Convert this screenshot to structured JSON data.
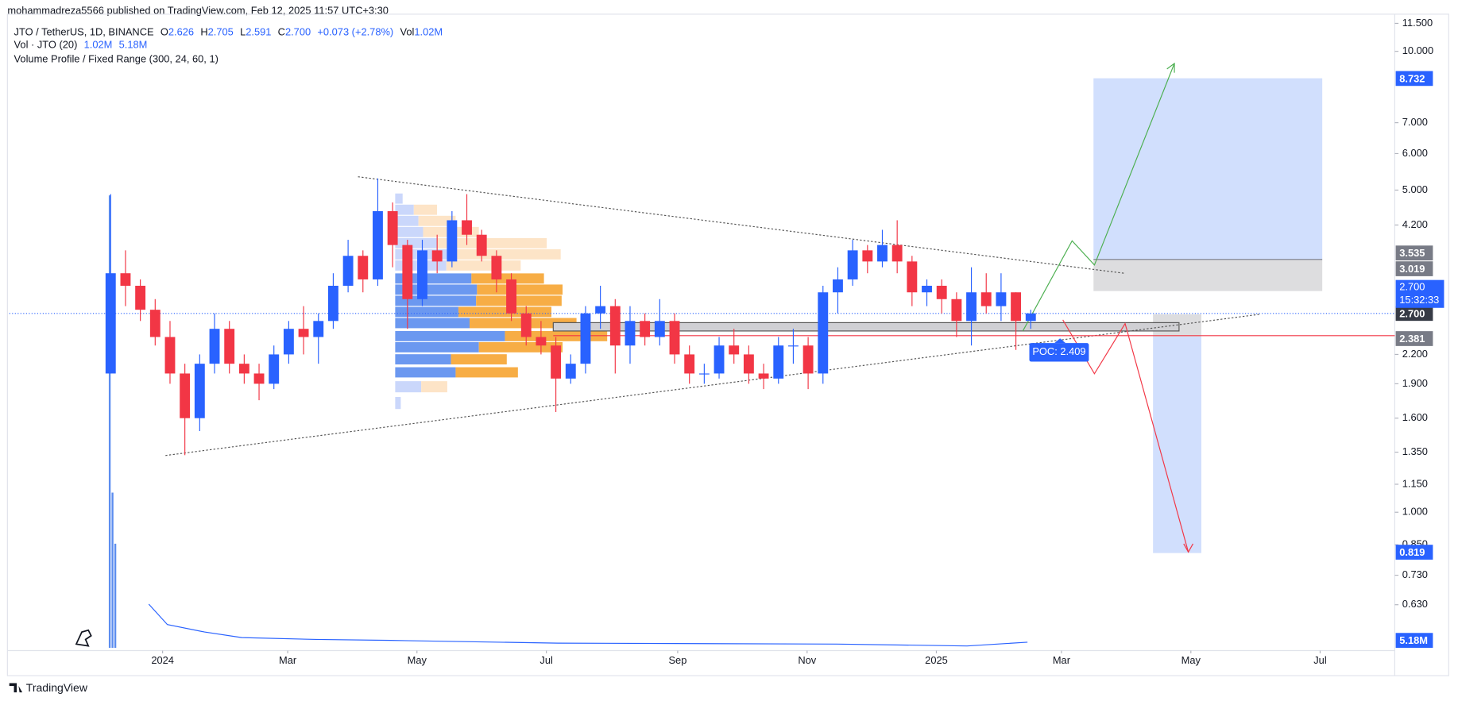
{
  "header": {
    "published": "mohammadreza5566 published on TradingView.com, Feb 12, 2025 11:57 UTC+3:30",
    "footer": "TradingView"
  },
  "legend": {
    "symbol": "JTO / TetherUS, 1D, BINANCE",
    "o_key": "O",
    "o_val": "2.626",
    "h_key": "H",
    "h_val": "2.705",
    "l_key": "L",
    "l_val": "2.591",
    "c_key": "C",
    "c_val": "2.700",
    "change": "+0.073 (+2.78%)",
    "vol_key": "Vol",
    "vol_val": "1.02M",
    "vol_study": "Vol · JTO (20)",
    "vol_study_v1": "1.02M",
    "vol_study_v2": "5.18M",
    "vp_study": "Volume Profile / Fixed Range (300, 24, 60, 1)"
  },
  "chart_data": {
    "type": "candlestick",
    "log_scale": true,
    "up_color": "#2962ff",
    "down_color": "#f23645",
    "x": [
      0,
      1,
      2,
      3,
      4,
      5,
      6,
      7,
      8,
      9,
      10,
      11,
      12,
      13,
      14,
      15,
      16,
      17,
      18,
      19,
      20,
      21,
      22,
      23,
      24,
      25,
      26,
      27,
      28,
      29,
      30,
      31,
      32,
      33,
      34,
      35,
      36,
      37,
      38,
      39,
      40,
      41,
      42,
      43,
      44,
      45,
      46,
      47,
      48,
      49,
      50,
      51,
      52,
      53,
      54,
      55,
      56,
      57,
      58,
      59,
      60,
      61,
      62
    ],
    "open": [
      2.0,
      3.3,
      3.1,
      2.75,
      2.4,
      2.0,
      1.6,
      2.1,
      2.5,
      2.1,
      2.0,
      1.9,
      2.2,
      2.5,
      2.4,
      2.6,
      3.1,
      3.6,
      3.2,
      4.5,
      3.8,
      2.9,
      3.7,
      3.5,
      4.3,
      4.0,
      3.6,
      3.2,
      2.7,
      2.4,
      2.3,
      1.95,
      2.1,
      2.7,
      2.8,
      2.3,
      2.6,
      2.4,
      2.6,
      2.2,
      2.0,
      2.0,
      2.3,
      2.2,
      2.0,
      1.95,
      2.3,
      2.3,
      2.0,
      3.0,
      3.2,
      3.7,
      3.5,
      3.8,
      3.5,
      3.0,
      3.1,
      2.9,
      2.6,
      3.0,
      2.8,
      3.0,
      2.6
    ],
    "high": [
      4.9,
      3.7,
      3.2,
      2.9,
      2.6,
      2.1,
      2.2,
      2.7,
      2.6,
      2.2,
      2.1,
      2.3,
      2.6,
      2.8,
      2.7,
      3.3,
      3.9,
      3.7,
      5.3,
      4.7,
      3.9,
      3.9,
      4.0,
      4.5,
      4.9,
      4.1,
      3.7,
      3.3,
      2.8,
      2.6,
      2.4,
      2.2,
      2.8,
      3.1,
      2.9,
      2.8,
      2.7,
      2.9,
      2.7,
      2.3,
      2.1,
      2.4,
      2.5,
      2.3,
      2.1,
      2.4,
      2.5,
      2.4,
      3.1,
      3.4,
      3.9,
      3.8,
      4.1,
      4.3,
      3.6,
      3.2,
      3.2,
      3.0,
      3.4,
      3.3,
      3.3,
      3.0,
      2.75
    ],
    "low": [
      2.0,
      2.8,
      2.6,
      2.3,
      1.9,
      1.33,
      1.5,
      2.0,
      2.0,
      1.9,
      1.75,
      1.85,
      2.1,
      2.2,
      2.1,
      2.5,
      3.0,
      3.0,
      3.1,
      3.4,
      2.5,
      2.8,
      3.3,
      3.4,
      3.8,
      3.5,
      3.0,
      2.6,
      2.3,
      2.2,
      1.65,
      1.9,
      2.0,
      2.5,
      2.0,
      2.1,
      2.3,
      2.3,
      2.1,
      1.9,
      1.9,
      1.95,
      2.1,
      1.9,
      1.85,
      1.9,
      2.1,
      1.85,
      1.9,
      2.7,
      3.1,
      3.3,
      3.4,
      3.3,
      2.8,
      2.8,
      2.7,
      2.4,
      2.3,
      2.7,
      2.6,
      2.25,
      2.5
    ],
    "close": [
      3.3,
      3.1,
      2.75,
      2.4,
      2.0,
      1.6,
      2.1,
      2.5,
      2.1,
      2.0,
      1.9,
      2.2,
      2.5,
      2.4,
      2.6,
      3.1,
      3.6,
      3.2,
      4.5,
      3.8,
      2.9,
      3.7,
      3.5,
      4.3,
      4.0,
      3.6,
      3.2,
      2.7,
      2.4,
      2.3,
      1.95,
      2.1,
      2.7,
      2.8,
      2.3,
      2.6,
      2.4,
      2.6,
      2.2,
      2.0,
      2.0,
      2.3,
      2.2,
      2.0,
      1.95,
      2.3,
      2.3,
      2.0,
      3.0,
      3.2,
      3.7,
      3.5,
      3.8,
      3.5,
      3.0,
      3.1,
      2.9,
      2.6,
      3.0,
      2.8,
      3.0,
      2.6,
      2.7
    ],
    "xlim": [
      -6.33,
      87.03
    ],
    "ylim": [
      0.508,
      12.04
    ],
    "xticks": [
      {
        "value": 4,
        "label": "2024"
      },
      {
        "value": 12.43,
        "label": "Mar"
      },
      {
        "value": 21.14,
        "label": "May"
      },
      {
        "value": 29.86,
        "label": "Jul"
      },
      {
        "value": 38.71,
        "label": "Sep"
      },
      {
        "value": 47.43,
        "label": "Nov"
      },
      {
        "value": 56.14,
        "label": "2025"
      },
      {
        "value": 64.57,
        "label": "Mar"
      },
      {
        "value": 73.29,
        "label": "May"
      },
      {
        "value": 82.0,
        "label": "Jul"
      }
    ],
    "yticks": [
      {
        "value": 11.5,
        "label": "11.500"
      },
      {
        "value": 10,
        "label": "10.000"
      },
      {
        "value": 7,
        "label": "7.000"
      },
      {
        "value": 6,
        "label": "6.000"
      },
      {
        "value": 5,
        "label": "5.000"
      },
      {
        "value": 4.2,
        "label": "4.200"
      },
      {
        "value": 2.2,
        "label": "2.200"
      },
      {
        "value": 1.9,
        "label": "1.900"
      },
      {
        "value": 1.6,
        "label": "1.600"
      },
      {
        "value": 1.35,
        "label": "1.350"
      },
      {
        "value": 1.15,
        "label": "1.150"
      },
      {
        "value": 1,
        "label": "1.000"
      },
      {
        "value": 0.85,
        "label": "0.850"
      },
      {
        "value": 0.73,
        "label": "0.730"
      },
      {
        "value": 0.63,
        "label": "0.630"
      }
    ],
    "current_price": {
      "value": 2.7,
      "label": "2.700",
      "countdown": "15:32:33",
      "color": "#2962ff"
    },
    "price_labels": [
      {
        "value": 8.732,
        "color": "#2962ff"
      },
      {
        "value": 3.535,
        "color": "#787b86"
      },
      {
        "value": 3.019,
        "color": "#787b86"
      },
      {
        "value": 2.7,
        "label": "2.700",
        "color": "#363a45"
      },
      {
        "value": 2.381,
        "color": "#787b86"
      },
      {
        "value": 0.819,
        "color": "#2962ff"
      }
    ],
    "poc_label": "POC: 2.409",
    "volume_label": "5.18M"
  }
}
